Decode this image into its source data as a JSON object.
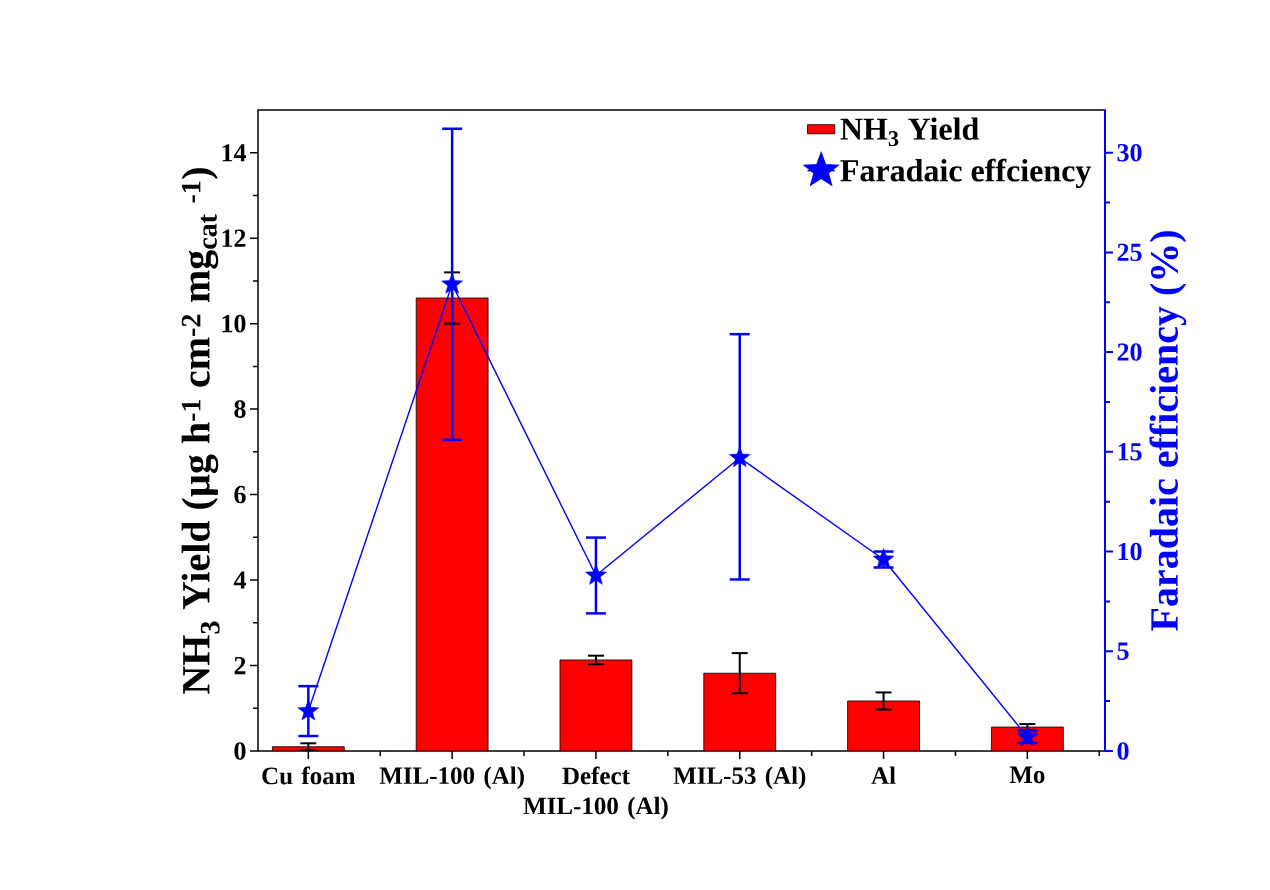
{
  "chart_data": {
    "type": "bar",
    "ylabel": "NH$_{3}$ Yield (µg h$^{-1}$ cm$^{-2}$ mg$_{cat}$ $^{-1}$)",
    "y2label": "Faradaic efficiency (%)",
    "categories": [
      "Cu foam",
      "MIL-100 (Al)",
      "Defect MIL-100 (Al)",
      "MIL-53 (Al)",
      "Al",
      "Mo"
    ],
    "ylim": [
      0,
      15
    ],
    "yticks": [
      0,
      2,
      4,
      6,
      8,
      10,
      12,
      14
    ],
    "y2lim": [
      0,
      32.14
    ],
    "y2ticks": [
      0,
      5,
      10,
      15,
      20,
      25,
      30
    ],
    "legend": "top right",
    "series": [
      {
        "name": "NH$_{3}$ Yield",
        "color": "#ff0000",
        "values": [
          0.1,
          10.6,
          2.13,
          1.82,
          1.17,
          0.56
        ],
        "errors": [
          0.08,
          0.6,
          0.1,
          0.47,
          0.2,
          0.07
        ]
      },
      {
        "name": "Faradaic effciency",
        "type": "line",
        "axis": "y2",
        "marker": "star",
        "color": "#0000ff",
        "values": [
          2.0,
          23.4,
          8.8,
          14.7,
          9.6,
          0.7
        ],
        "errors": [
          1.25,
          [
            15.6,
            31.2
          ],
          1.9,
          [
            8.6,
            20.9
          ],
          0.4,
          0.3
        ]
      }
    ]
  }
}
